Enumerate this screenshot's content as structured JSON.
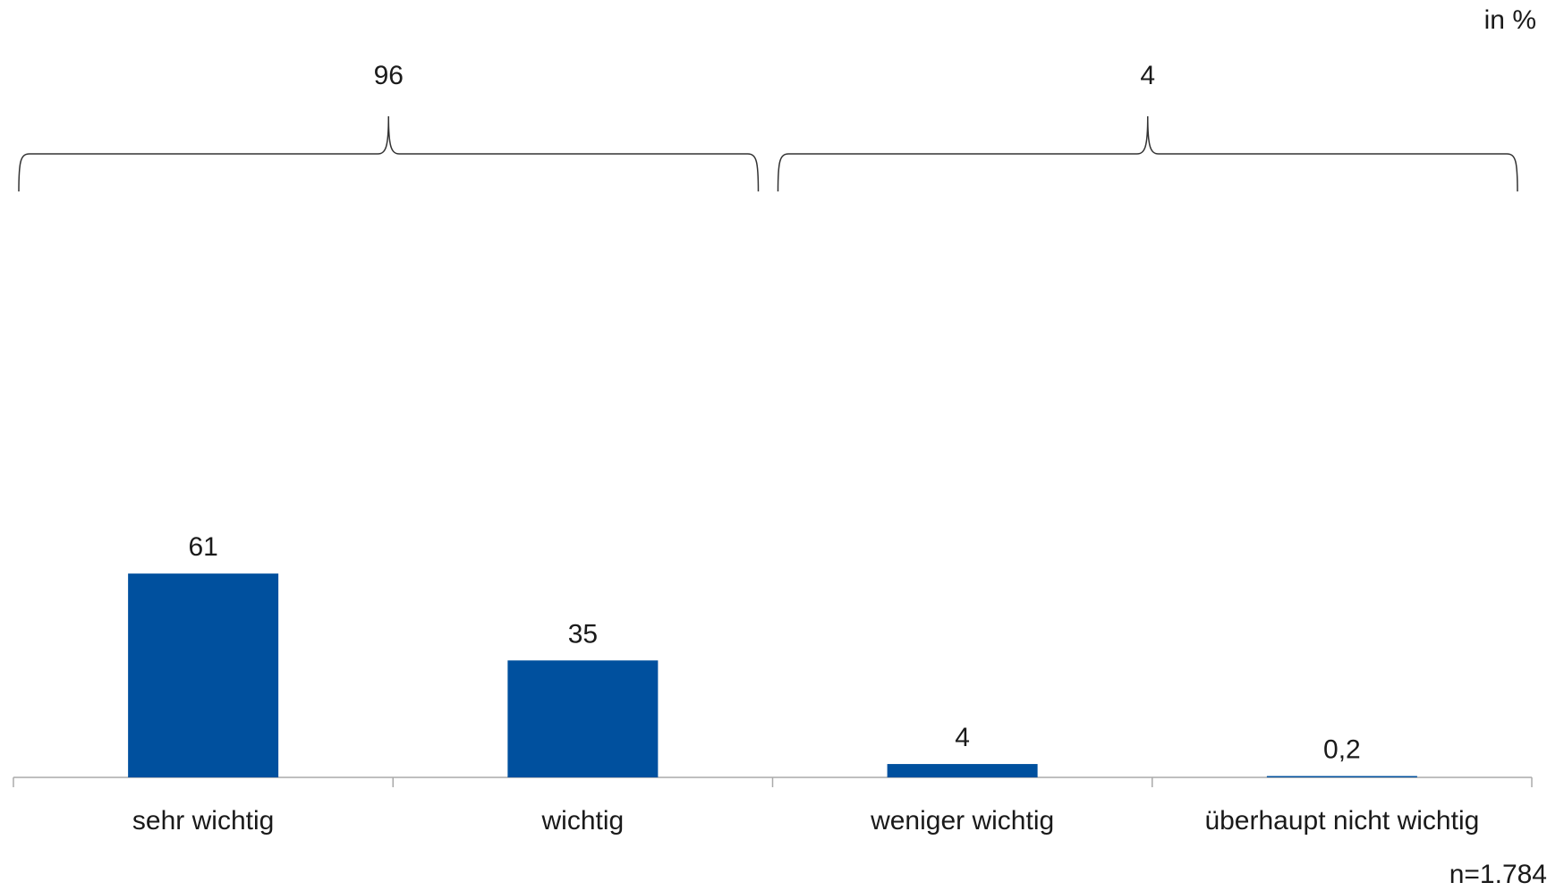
{
  "unit_label": "in %",
  "note": "n=1.784",
  "colors": {
    "bar": "#00509e",
    "axis": "#aaaaaa",
    "brace": "#333333"
  },
  "chart_data": {
    "type": "bar",
    "categories": [
      "sehr wichtig",
      "wichtig",
      "weniger wichtig",
      "überhaupt nicht wichtig"
    ],
    "values": [
      61,
      35,
      4,
      0.2
    ],
    "value_labels": [
      "61",
      "35",
      "4",
      "0,2"
    ],
    "ylim": [
      0,
      100
    ],
    "grid": false,
    "legend": "none",
    "groups": [
      {
        "label": "96",
        "categories": [
          "sehr wichtig",
          "wichtig"
        ]
      },
      {
        "label": "4",
        "categories": [
          "weniger wichtig",
          "überhaupt nicht wichtig"
        ]
      }
    ]
  }
}
